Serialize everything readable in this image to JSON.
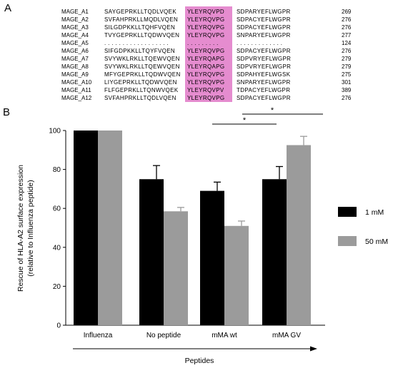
{
  "panel_a": {
    "label": "A",
    "rows": [
      {
        "name": "MAGE_A1",
        "seq_left": "SAYGEPRKLLTQDLVQEK",
        "motif": "YLEYRQVPD",
        "seq_right": "SDPARYEFLWGPR",
        "num": "269"
      },
      {
        "name": "MAGE_A2",
        "seq_left": "SVFAHPRKLLMQDLVQEN",
        "motif": "YLEYRQVPG",
        "seq_right": "SDPACYEFLWGPR",
        "num": "276"
      },
      {
        "name": "MAGE_A3",
        "seq_left": "SILGDPKKLLTQHFVQEN",
        "motif": "YLEYRQVPG",
        "seq_right": "SDPACYEFLWGPR",
        "num": "276"
      },
      {
        "name": "MAGE_A4",
        "seq_left": "TVYGEPRKLLTQDWVQEN",
        "motif": "YLEYRQVPG",
        "seq_right": "SNPARYEFLWGPR",
        "num": "277"
      },
      {
        "name": "MAGE_A5",
        "seq_left": ". . . . . . . . . . . . . . . . . .",
        "motif": ". . . . . . . . .",
        "seq_right": ". . . . . . . . . . . . .",
        "num": "124"
      },
      {
        "name": "MAGE_A6",
        "seq_left": "SIFGDPKKLLTQYFVQEN",
        "motif": "YLEYRQVPG",
        "seq_right": "SDPACYEFLWGPR",
        "num": "276"
      },
      {
        "name": "MAGE_A7",
        "seq_left": "SVYWKLRKLLTQEWVQEN",
        "motif": "YLEYRQAPG",
        "seq_right": "SDPVRYEFLWGPR",
        "num": "279"
      },
      {
        "name": "MAGE_A8",
        "seq_left": "SVYWKLRKLLTQEWVQEN",
        "motif": "YLEYRQAPG",
        "seq_right": "SDPVRYEFLWGPR",
        "num": "279"
      },
      {
        "name": "MAGE_A9",
        "seq_left": "MFYGEPRKLLTQDWVQEN",
        "motif": "YLEYRQVPG",
        "seq_right": "SDPAHYEFLWGSK",
        "num": "275"
      },
      {
        "name": "MAGE_A10",
        "seq_left": "LIYGEPRKLLTQDWVQEN",
        "motif": "YLEYRQVPG",
        "seq_right": "SNPARYEFLWGPR",
        "num": "301"
      },
      {
        "name": "MAGE_A11",
        "seq_left": "FLFGEPRKLLTQNWVQEK",
        "motif": "YLEYRQVPV",
        "seq_right": "TDPACYEFLWGPR",
        "num": "389"
      },
      {
        "name": "MAGE_A12",
        "seq_left": "SVFAHPRKLLTQDLVQEN",
        "motif": "YLEYRQVPG",
        "seq_right": "SDPACYEFLWGPR",
        "num": "276"
      }
    ]
  },
  "panel_b": {
    "label": "B"
  },
  "chart_data": {
    "type": "bar",
    "categories": [
      "Influenza",
      "No peptide",
      "mMA wt",
      "mMA GV"
    ],
    "series": [
      {
        "name": "1 mM",
        "color": "#000000",
        "values": [
          100,
          75,
          69,
          75
        ],
        "errors": [
          0,
          7,
          4.5,
          6.5
        ]
      },
      {
        "name": "50 mM",
        "color": "#9b9b9b",
        "values": [
          100,
          58.5,
          51,
          92.5
        ],
        "errors": [
          0,
          2,
          2.5,
          4.5
        ]
      }
    ],
    "ylabel_line1": "Rescue of HLA-A2 surface expression",
    "ylabel_line2": "(relative to Influenza peptide)",
    "xlabel": "Peptides",
    "ylim": [
      0,
      100
    ],
    "yticks": [
      0,
      20,
      40,
      60,
      80,
      100
    ],
    "significance": [
      {
        "from": "mMA wt 1 mM",
        "to": "mMA GV 1 mM",
        "label": "*"
      },
      {
        "from": "mMA wt 1 mM",
        "to": "mMA GV 50 mM",
        "label": "*"
      }
    ],
    "legend_position": "right"
  }
}
